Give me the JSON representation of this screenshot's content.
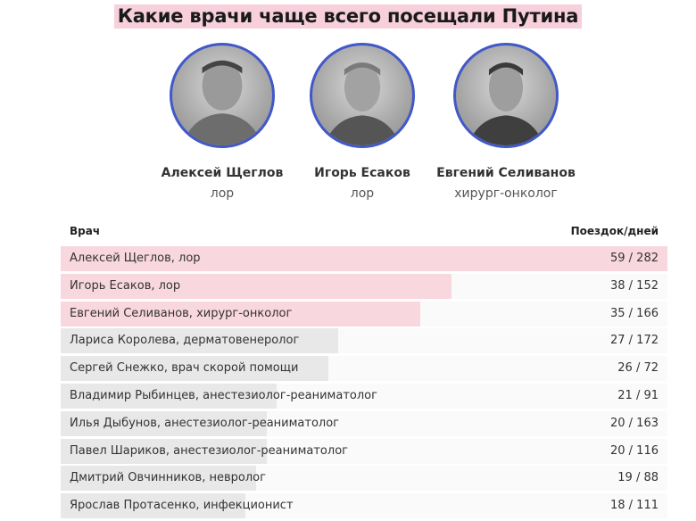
{
  "title": "Какие врачи чаще всего посещали Путина",
  "people": [
    {
      "name": "Алексей Щеглов",
      "role": "лор"
    },
    {
      "name": "Игорь Есаков",
      "role": "лор"
    },
    {
      "name": "Евгений Селиванов",
      "role": "хирург-онколог"
    }
  ],
  "colors": {
    "highlight": "#f8d7de",
    "regular": "#e8e8e8",
    "avatar_border": "#4158c8"
  },
  "chart_data": {
    "type": "bar",
    "orientation": "horizontal",
    "column_headers": [
      "Врач",
      "Поездок/дней"
    ],
    "rows": [
      {
        "label": "Алексей Щеглов, лор",
        "trips": 59,
        "days": 282,
        "value_text": "59 / 282",
        "highlight": true
      },
      {
        "label": "Игорь Есаков, лор",
        "trips": 38,
        "days": 152,
        "value_text": "38 / 152",
        "highlight": true
      },
      {
        "label": "Евгений Селиванов, хирург-онколог",
        "trips": 35,
        "days": 166,
        "value_text": "35 / 166",
        "highlight": true
      },
      {
        "label": "Лариса Королева, дерматовенеролог",
        "trips": 27,
        "days": 172,
        "value_text": "27 / 172",
        "highlight": false
      },
      {
        "label": "Сергей Снежко, врач скорой помощи",
        "trips": 26,
        "days": 72,
        "value_text": "26 / 72",
        "highlight": false
      },
      {
        "label": "Владимир Рыбинцев, анестезиолог-реаниматолог",
        "trips": 21,
        "days": 91,
        "value_text": "21 / 91",
        "highlight": false
      },
      {
        "label": "Илья Дыбунов, анестезиолог-реаниматолог",
        "trips": 20,
        "days": 163,
        "value_text": "20 / 163",
        "highlight": false
      },
      {
        "label": "Павел Шариков, анестезиолог-реаниматолог",
        "trips": 20,
        "days": 116,
        "value_text": "20 / 116",
        "highlight": false
      },
      {
        "label": "Дмитрий Овчинников, невролог",
        "trips": 19,
        "days": 88,
        "value_text": "19 / 88",
        "highlight": false
      },
      {
        "label": "Ярослав Протасенко, инфекционист",
        "trips": 18,
        "days": 111,
        "value_text": "18 / 111",
        "highlight": false
      }
    ],
    "bar_metric": "trips",
    "xlim": [
      0,
      59
    ]
  }
}
